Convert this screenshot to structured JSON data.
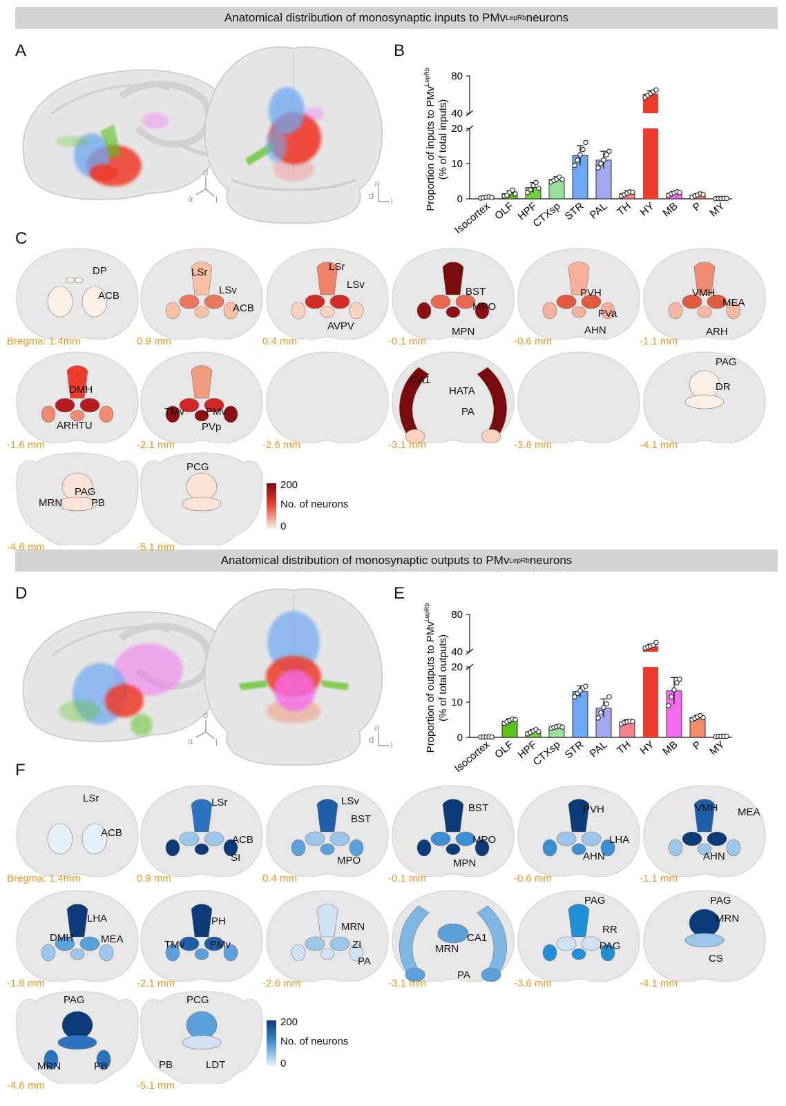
{
  "header_inputs": {
    "prefix": "Anatomical distribution of monosynaptic inputs to PMv",
    "sup": "LepRb",
    "suffix": " neurons"
  },
  "header_outputs": {
    "prefix": "Anatomical distribution of monosynaptic outputs to PMv",
    "sup": "LepRb",
    "suffix": " neurons"
  },
  "panel_labels": {
    "A": "A",
    "B": "B",
    "C": "C",
    "D": "D",
    "E": "E",
    "F": "F"
  },
  "axes_indicator": {
    "d": "d",
    "a": "a",
    "l": "l"
  },
  "colors": {
    "isocortex": "#9e9e9e",
    "OLF": "#58c21a",
    "HPF": "#72d244",
    "CTXsp": "#97e39c",
    "STR": "#6ea7f2",
    "PAL": "#a3a8f2",
    "TH": "#f4838c",
    "HY": "#ef3b2c",
    "MB": "#f46bf0",
    "P": "#f38b6a",
    "MY": "#c9c9c9",
    "inputs_heat_low": "#fdeee6",
    "inputs_heat_high": "#7a0b0b",
    "outputs_heat_low": "#e7f1fb",
    "outputs_heat_high": "#0b3a78",
    "bregma_text": "#f0961c"
  },
  "chart_data": [
    {
      "type": "bar",
      "panel": "B",
      "ylabel": "Proportion of inputs to PMv",
      "ylabel_sup": "LepRb",
      "ylabel2": "(% of total inputs)",
      "categories": [
        "Isocortex",
        "OLF",
        "HPF",
        "CTXsp",
        "STR",
        "PAL",
        "TH",
        "HY",
        "MB",
        "P",
        "MY"
      ],
      "values": [
        0.4,
        1.5,
        3.2,
        5.5,
        12.3,
        11.0,
        1.5,
        61,
        1.6,
        1.0,
        0.1
      ],
      "errors": [
        0.2,
        0.8,
        1.4,
        0.8,
        2.8,
        2.5,
        0.8,
        3,
        0.5,
        0.5,
        0.1
      ],
      "points": [
        [
          0.2,
          0.3,
          0.5,
          0.6,
          0.4
        ],
        [
          0.8,
          1.0,
          1.8,
          2.5,
          1.4
        ],
        [
          1.8,
          2.6,
          3.8,
          4.6,
          3.0
        ],
        [
          4.8,
          5.2,
          5.6,
          6.2,
          5.5
        ],
        [
          9.5,
          11.0,
          12.5,
          14.0,
          16.0
        ],
        [
          8.8,
          10.0,
          11.0,
          12.5,
          13.5
        ],
        [
          0.8,
          1.2,
          1.6,
          2.0,
          1.9
        ],
        [
          57,
          59,
          61,
          63,
          65
        ],
        [
          1.0,
          1.4,
          1.7,
          2.0,
          1.8
        ],
        [
          0.5,
          0.8,
          1.1,
          1.4,
          1.2
        ],
        [
          0.05,
          0.1,
          0.1,
          0.15,
          0.1
        ]
      ],
      "yticks_lower": [
        0,
        10,
        20
      ],
      "yticks_upper": [
        40,
        80
      ],
      "ylim_lower": [
        0,
        20
      ],
      "ylim_upper": [
        40,
        80
      ],
      "broken_axis": true
    },
    {
      "type": "bar",
      "panel": "E",
      "ylabel": "Proportion of outputs to PMv",
      "ylabel_sup": "LepRb",
      "ylabel2": "(% of total outputs)",
      "categories": [
        "Isocortex",
        "OLF",
        "HPF",
        "CTXsp",
        "STR",
        "PAL",
        "TH",
        "HY",
        "MB",
        "P",
        "MY"
      ],
      "values": [
        0.1,
        4.6,
        1.6,
        2.9,
        13.0,
        8.3,
        4.3,
        46,
        13.2,
        5.6,
        0.3
      ],
      "errors": [
        0.1,
        0.7,
        0.6,
        0.4,
        1.6,
        2.6,
        0.7,
        2,
        3.8,
        0.7,
        0.1
      ],
      "points": [
        [
          0.05,
          0.1,
          0.1,
          0.15,
          0.1
        ],
        [
          4.0,
          4.4,
          4.8,
          5.2,
          5.0
        ],
        [
          1.0,
          1.4,
          1.8,
          2.2,
          1.6
        ],
        [
          2.6,
          2.8,
          3.0,
          3.2,
          2.9
        ],
        [
          11.5,
          12.5,
          13.2,
          14.0,
          14.5
        ],
        [
          5.5,
          7.0,
          8.5,
          9.5,
          11.5
        ],
        [
          3.8,
          4.2,
          4.4,
          4.6,
          4.5
        ],
        [
          44,
          45,
          46,
          47,
          50
        ],
        [
          9.0,
          11.5,
          13.5,
          15.5,
          16.5
        ],
        [
          5.0,
          5.4,
          5.8,
          6.2,
          5.6
        ],
        [
          0.2,
          0.3,
          0.3,
          0.35,
          0.3
        ]
      ],
      "yticks_lower": [
        0,
        10,
        20
      ],
      "yticks_upper": [
        40,
        80
      ],
      "ylim_lower": [
        0,
        20
      ],
      "ylim_upper": [
        40,
        80
      ],
      "broken_axis": true
    }
  ],
  "inputs_sections": {
    "bregma": [
      "Bregma: 1.4mm",
      "0.9 mm",
      "0.4 mm",
      "-0.1 mm",
      "-0.6 mm",
      "-1.1 mm",
      "-1.6 mm",
      "-2.1 mm",
      "-2.6 mm",
      "-3.1 mm",
      "-3.6 mm",
      "-4.1 mm",
      "-4.6 mm",
      "-5.1 mm"
    ],
    "labels": [
      [
        "DP",
        "ACB"
      ],
      [
        "LSr",
        "LSv",
        "ACB"
      ],
      [
        "LSr",
        "LSv",
        "AVPV"
      ],
      [
        "BST",
        "MPO",
        "MPN"
      ],
      [
        "PVH",
        "PVa",
        "AHN"
      ],
      [
        "VMH",
        "MEA",
        "ARH"
      ],
      [
        "DMH",
        "ARHTU"
      ],
      [
        "TMv",
        "PMv",
        "PVp"
      ],
      [],
      [
        "CA1",
        "HATA",
        "PA"
      ],
      [],
      [
        "PAG",
        "DR"
      ],
      [
        "PAG",
        "MRN",
        "PB"
      ],
      [
        "PCG"
      ]
    ],
    "legend": {
      "max": "200",
      "label": "No. of neurons",
      "min": "0"
    }
  },
  "outputs_sections": {
    "bregma": [
      "Bregma: 1.4mm",
      "0.9 mm",
      "0.4 mm",
      "-0.1 mm",
      "-0.6 mm",
      "-1.1 mm",
      "-1.6 mm",
      "-2.1 mm",
      "-2.6 mm",
      "-3.1 mm",
      "-3.6 mm",
      "-4.1 mm",
      "-4.6 mm",
      "-5.1 mm"
    ],
    "labels": [
      [
        "LSr",
        "ACB"
      ],
      [
        "LSr",
        "ACB",
        "SI"
      ],
      [
        "LSv",
        "BST",
        "MPO"
      ],
      [
        "BST",
        "MPO",
        "MPN"
      ],
      [
        "PVH",
        "LHA",
        "AHN"
      ],
      [
        "VMH",
        "MEA",
        "AHN"
      ],
      [
        "LHA",
        "DMH",
        "MEA"
      ],
      [
        "PH",
        "TMv",
        "PMv"
      ],
      [
        "MRN",
        "ZI",
        "PA"
      ],
      [
        "CA1",
        "MRN",
        "PA"
      ],
      [
        "PAG",
        "RR",
        "PAG"
      ],
      [
        "PAG",
        "MRN",
        "CS"
      ],
      [
        "PAG",
        "MRN",
        "PB"
      ],
      [
        "PCG",
        "PB",
        "LDT"
      ]
    ],
    "legend": {
      "max": "200",
      "label": "No. of neurons",
      "min": "0"
    }
  }
}
